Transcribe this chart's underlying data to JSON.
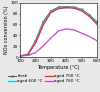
{
  "title": "",
  "xlabel": "Temperature (°C)",
  "ylabel": "NOx conversion (%)",
  "ylim": [
    0,
    100
  ],
  "xlim": [
    100,
    600
  ],
  "xticks": [
    100,
    200,
    300,
    400,
    500,
    600
  ],
  "yticks": [
    0,
    20,
    40,
    60,
    80,
    100
  ],
  "series": {
    "fresh": {
      "x": [
        100,
        150,
        200,
        250,
        300,
        350,
        400,
        450,
        500,
        550,
        600
      ],
      "y": [
        2,
        5,
        30,
        65,
        85,
        92,
        93,
        92,
        88,
        78,
        65
      ],
      "color": "#555555",
      "style": "-",
      "marker": "x",
      "lw": 0.7,
      "label": "fresh"
    },
    "aged600": {
      "x": [
        100,
        150,
        200,
        250,
        300,
        350,
        400,
        450,
        500,
        550,
        600
      ],
      "y": [
        2,
        5,
        28,
        62,
        84,
        90,
        92,
        91,
        87,
        77,
        63
      ],
      "color": "#00ccff",
      "style": "-",
      "marker": null,
      "lw": 0.9,
      "label": "aged 600 °C"
    },
    "aged700": {
      "x": [
        100,
        150,
        200,
        250,
        300,
        350,
        400,
        450,
        500,
        550,
        600
      ],
      "y": [
        2,
        4,
        25,
        58,
        82,
        89,
        91,
        90,
        85,
        75,
        60
      ],
      "color": "#ff2222",
      "style": "-",
      "marker": null,
      "lw": 0.9,
      "label": "aged 700 °C"
    },
    "aged760": {
      "x": [
        100,
        150,
        200,
        250,
        300,
        350,
        400,
        450,
        500,
        550,
        600
      ],
      "y": [
        2,
        3,
        8,
        20,
        35,
        48,
        52,
        50,
        44,
        38,
        30
      ],
      "color": "#cc44cc",
      "style": "-",
      "marker": null,
      "lw": 0.9,
      "label": "aged 760 °C"
    }
  },
  "legend_fontsize": 3.0,
  "axis_fontsize": 3.5,
  "tick_fontsize": 3.0,
  "background_color": "#e8e8e8"
}
